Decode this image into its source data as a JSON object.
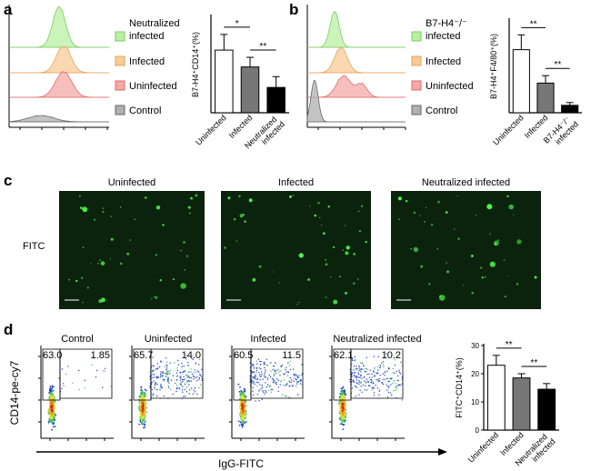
{
  "panel_labels": [
    "a",
    "b",
    "c",
    "d"
  ],
  "histograms": [
    {
      "legend": [
        "Neutralized infected",
        "Infected",
        "Uninfected",
        "Control"
      ]
    },
    {
      "legend": [
        "B7-H4⁻/⁻ infected",
        "Infected",
        "Uninfected",
        "Control"
      ]
    }
  ],
  "microscopy": {
    "titles": [
      "Uninfected",
      "Infected",
      "Neutralized infected"
    ],
    "channel": "FITC"
  },
  "flow": {
    "titles": [
      "Control",
      "Uninfected",
      "Infected",
      "Neutralized infected"
    ],
    "gates": [
      [
        "63.0",
        "1.85"
      ],
      [
        "65.7",
        "14.0"
      ],
      [
        "60.5",
        "11.5"
      ],
      [
        "62.1",
        "10.2"
      ]
    ],
    "y_label": "CD14-pe-cy7",
    "x_label": "IgG-FITC"
  },
  "chart_data": [
    {
      "type": "bar",
      "ylabel": "B7-H4⁺CD14⁺(%)",
      "categories": [
        "Uninfected",
        "Infected",
        "Neutralized infected"
      ],
      "values": [
        26,
        19,
        10.5
      ],
      "errors": [
        6.5,
        4,
        4.5
      ],
      "colors": [
        "#ffffff",
        "#777777",
        "#000000"
      ],
      "ylim": [
        0,
        40
      ],
      "significance": [
        "*",
        "**"
      ]
    },
    {
      "type": "bar",
      "ylabel": "B7-H4⁺F4/80⁺(%)",
      "categories": [
        "Uninfected",
        "Infected",
        "B7-H4⁻/⁻ infected"
      ],
      "values": [
        34,
        16,
        4
      ],
      "errors": [
        8,
        4,
        1.5
      ],
      "colors": [
        "#ffffff",
        "#777777",
        "#000000"
      ],
      "ylim": [
        0,
        50
      ],
      "significance": [
        "**",
        "**"
      ]
    },
    {
      "type": "bar",
      "ylabel": "FITC⁺CD14⁺(%)",
      "categories": [
        "Uninfected",
        "Infected",
        "Neutralized infected"
      ],
      "values": [
        23,
        18.5,
        14.5
      ],
      "errors": [
        3.5,
        1.5,
        2
      ],
      "colors": [
        "#ffffff",
        "#777777",
        "#000000"
      ],
      "ylim": [
        0,
        30
      ],
      "yticks": [
        0,
        10,
        20,
        30
      ],
      "significance": [
        "**",
        "**"
      ]
    }
  ]
}
